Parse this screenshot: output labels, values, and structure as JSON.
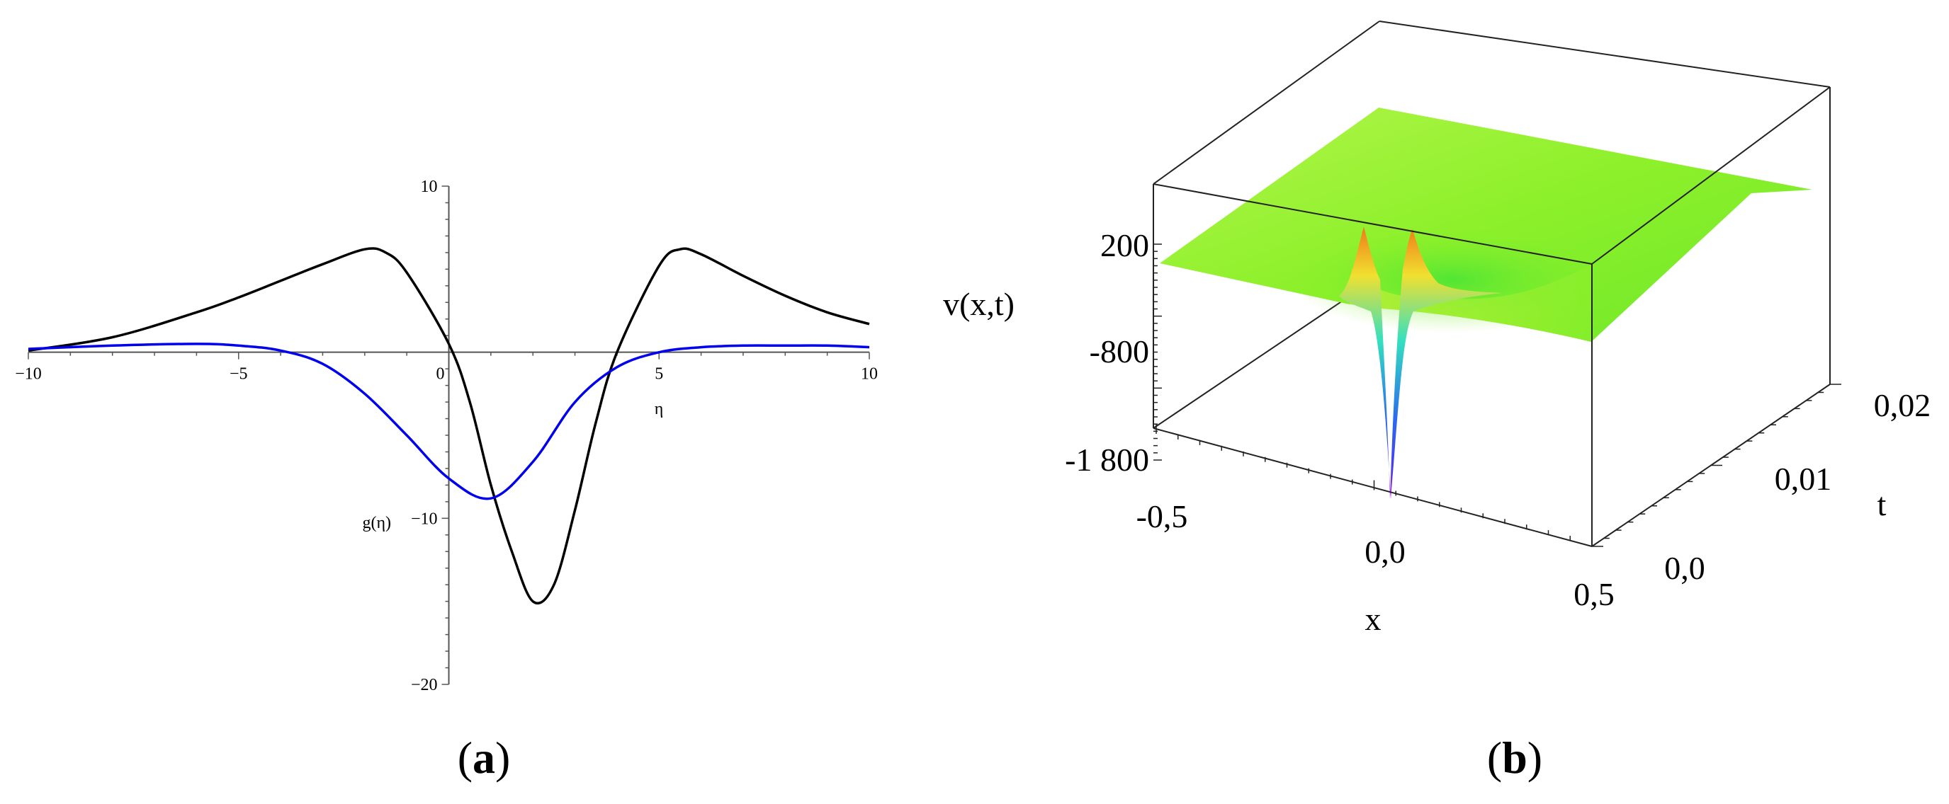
{
  "chart_data": [
    {
      "type": "line",
      "panel_label": "(a)",
      "caption_letter": "a",
      "xlabel": "η",
      "ylabel": "g(η)",
      "xlim": [
        -10,
        10
      ],
      "ylim": [
        -20,
        10
      ],
      "x_ticks": [
        -10,
        -5,
        0,
        5,
        10
      ],
      "x_tick_labels": [
        "−10",
        "−5",
        "0",
        "5",
        "10"
      ],
      "y_ticks": [
        10,
        -10,
        -20
      ],
      "y_tick_labels": [
        "10",
        "−10",
        "−20"
      ],
      "grid": false,
      "series": [
        {
          "color": "#000000",
          "x": [
            -10,
            -8,
            -6,
            -5,
            -4,
            -3,
            -2,
            -1.5,
            -1,
            0,
            0.5,
            1,
            1.5,
            2,
            2.5,
            3,
            3.5,
            4,
            5,
            5.5,
            6,
            7,
            8,
            9,
            10
          ],
          "values": [
            0.1,
            0.9,
            2.4,
            3.3,
            4.3,
            5.3,
            6.2,
            6.0,
            4.8,
            0.5,
            -3.0,
            -8.0,
            -12.0,
            -15.0,
            -14.0,
            -9.5,
            -4.2,
            0.0,
            5.2,
            6.2,
            5.9,
            4.6,
            3.4,
            2.4,
            1.7
          ]
        },
        {
          "color": "#0000ee",
          "x": [
            -10,
            -8,
            -6,
            -5,
            -4,
            -3,
            -2,
            -1,
            0,
            1,
            2,
            3,
            4,
            5,
            6,
            7,
            8,
            9,
            10
          ],
          "values": [
            0.2,
            0.4,
            0.5,
            0.4,
            0.1,
            -0.7,
            -2.5,
            -5.0,
            -7.6,
            -8.8,
            -6.6,
            -3.0,
            -0.9,
            0.0,
            0.3,
            0.4,
            0.4,
            0.4,
            0.3
          ]
        }
      ]
    },
    {
      "type": "surface3d",
      "panel_label": "(b)",
      "caption_letter": "b",
      "zlabel": "v(x,t)",
      "xlabel": "x",
      "ylabel": "t",
      "xlim": [
        -0.5,
        0.5
      ],
      "ylim": [
        0.0,
        0.02
      ],
      "zlim": [
        -1800,
        400
      ],
      "x_tick_labels": [
        "-0,5",
        "0,0",
        "0,5"
      ],
      "y_tick_labels": [
        "0,0",
        "0,01",
        "0,02"
      ],
      "z_tick_labels": [
        "200",
        "-800",
        "-1 800"
      ],
      "colors": {
        "surface": "#8cf227",
        "surface_light": "#a6f540",
        "peak": "#f07a18",
        "deep": "#2a6cf0",
        "min": "#c020ee"
      }
    }
  ]
}
